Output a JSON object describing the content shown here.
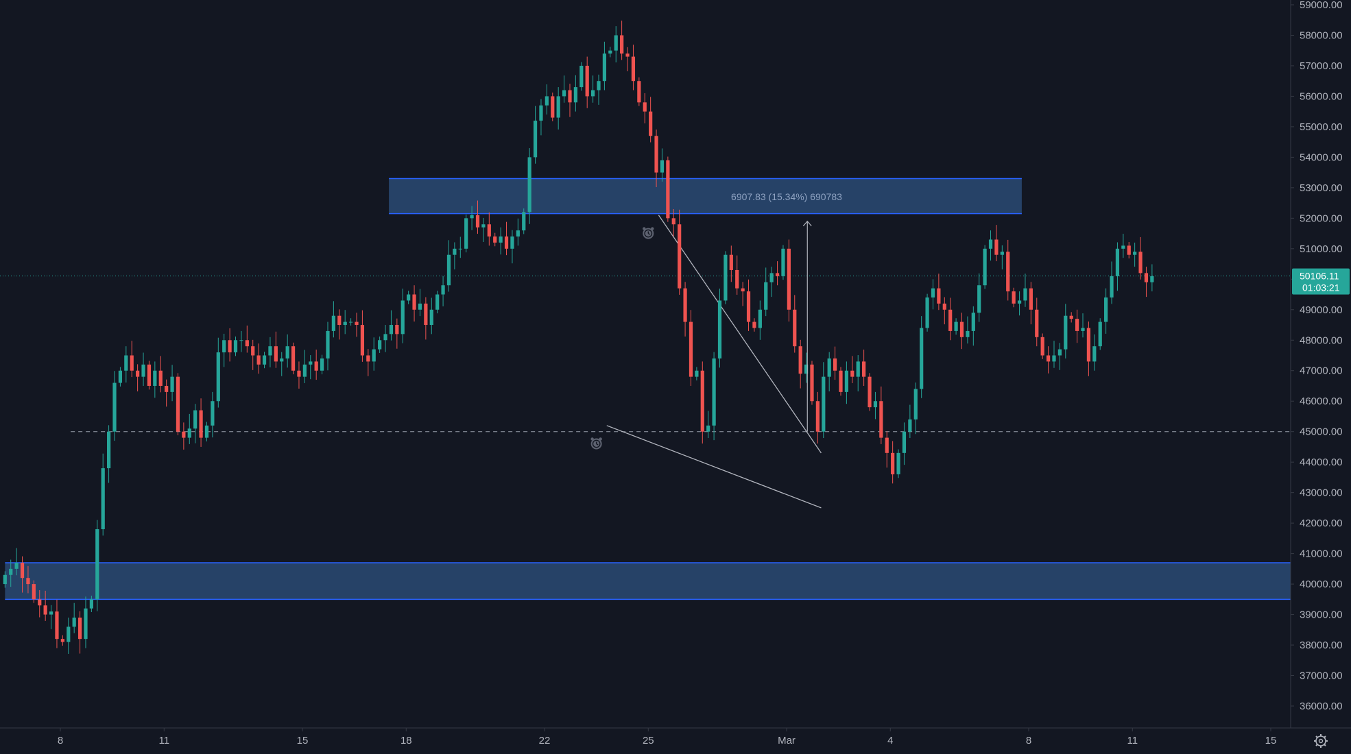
{
  "chart_data": {
    "type": "candlestick",
    "title": "",
    "xlabel": "",
    "ylabel": "",
    "ylim": [
      35500,
      59000
    ],
    "colors": {
      "background": "#131722",
      "up": "#26a69a",
      "down": "#ef5350",
      "zone_fill": "#2a4a73",
      "zone_border": "#2962ff",
      "line": "#b2b5be",
      "current_price": "#26a69a"
    },
    "y_ticks": [
      "59000.00",
      "58000.00",
      "57000.00",
      "56000.00",
      "55000.00",
      "54000.00",
      "53000.00",
      "52000.00",
      "51000.00",
      "50000.00",
      "49000.00",
      "48000.00",
      "47000.00",
      "46000.00",
      "45000.00",
      "44000.00",
      "43000.00",
      "42000.00",
      "41000.00",
      "40000.00",
      "39000.00",
      "38000.00",
      "37000.00",
      "36000.00"
    ],
    "x_ticks": [
      {
        "label": "8",
        "day": 8
      },
      {
        "label": "11",
        "day": 11
      },
      {
        "label": "15",
        "day": 15
      },
      {
        "label": "18",
        "day": 18
      },
      {
        "label": "22",
        "day": 22
      },
      {
        "label": "25",
        "day": 25
      },
      {
        "label": "Mar",
        "day": 29
      },
      {
        "label": "4",
        "day": 32
      },
      {
        "label": "8",
        "day": 36
      },
      {
        "label": "11",
        "day": 39
      },
      {
        "label": "15",
        "day": 43
      }
    ],
    "candles_start_day": 6.4,
    "candles_per_day": 6,
    "closes": [
      40300,
      40500,
      40700,
      40200,
      40000,
      39500,
      39300,
      39000,
      39100,
      38200,
      38100,
      38600,
      38900,
      38200,
      39200,
      39500,
      41800,
      43800,
      45000,
      46600,
      47000,
      47500,
      47000,
      46800,
      47200,
      46500,
      47000,
      46500,
      46300,
      46800,
      45000,
      44800,
      45100,
      45700,
      44800,
      45200,
      46000,
      47600,
      48000,
      47600,
      48000,
      48000,
      47800,
      47500,
      47200,
      47500,
      47800,
      47300,
      47400,
      47800,
      47000,
      46800,
      47200,
      47300,
      47000,
      47400,
      48300,
      48800,
      48500,
      48600,
      48600,
      48500,
      47500,
      47300,
      47700,
      48000,
      48200,
      48500,
      48200,
      49300,
      49500,
      49000,
      49200,
      48500,
      49000,
      49500,
      49800,
      50800,
      51000,
      51000,
      52000,
      52100,
      51700,
      51800,
      51400,
      51200,
      51400,
      51000,
      51400,
      51600,
      52200,
      54000,
      55200,
      55700,
      56000,
      55300,
      56000,
      56200,
      55800,
      56300,
      57000,
      56000,
      56200,
      56500,
      57400,
      57500,
      58000,
      57400,
      57300,
      56500,
      55800,
      55500,
      54700,
      53500,
      53900,
      52000,
      51800,
      49700,
      48600,
      46800,
      47000,
      45000,
      45200,
      47400,
      49300,
      50800,
      50300,
      49700,
      49600,
      48600,
      48400,
      49000,
      49900,
      50200,
      50100,
      51000,
      49000,
      47800,
      46900,
      47200,
      46000,
      45000,
      46800,
      47400,
      47000,
      46300,
      47000,
      46800,
      47300,
      46800,
      45800,
      46000,
      44800,
      44300,
      43600,
      44300,
      45000,
      45400,
      46400,
      48400,
      49400,
      49700,
      49200,
      49000,
      48300,
      48600,
      48100,
      48300,
      48900,
      49800,
      51000,
      51300,
      50800,
      50900,
      49600,
      49200,
      49300,
      49700,
      49000,
      48100,
      47500,
      47300,
      47500,
      47700,
      48800,
      48700,
      48300,
      48400,
      47300,
      47800,
      48600,
      49400,
      50100,
      51000,
      51100,
      50800,
      50900,
      50200,
      49900,
      50100
    ]
  },
  "zones": [
    {
      "name": "resistance-zone",
      "low": 52150,
      "high": 53300,
      "day_start": 17.5,
      "day_end": 35.8
    },
    {
      "name": "support-zone",
      "low": 39500,
      "high": 40700,
      "day_start": 6.4,
      "day_end": 43.8
    }
  ],
  "support_line": {
    "price": 45000,
    "day_start": 8.3,
    "day_end": 43.8
  },
  "trendlines": [
    {
      "name": "upper-trendline",
      "from": {
        "day": 25.3,
        "price": 52100
      },
      "to": {
        "day": 30.0,
        "price": 44300
      }
    },
    {
      "name": "lower-trendline",
      "from": {
        "day": 23.8,
        "price": 45200
      },
      "to": {
        "day": 30.0,
        "price": 42500
      }
    }
  ],
  "measure": {
    "label": "6907.83 (15.34%) 690783",
    "day": 29.6,
    "from_price": 45000,
    "to_price": 51900
  },
  "alerts": [
    {
      "name": "alarm-clock-icon",
      "day": 23.5,
      "price": 44600
    },
    {
      "name": "alarm-clock-icon",
      "day": 25.0,
      "price": 51500
    }
  ],
  "current_price": {
    "price": 50106.11,
    "label": "50106.11",
    "countdown": "01:03:21"
  }
}
